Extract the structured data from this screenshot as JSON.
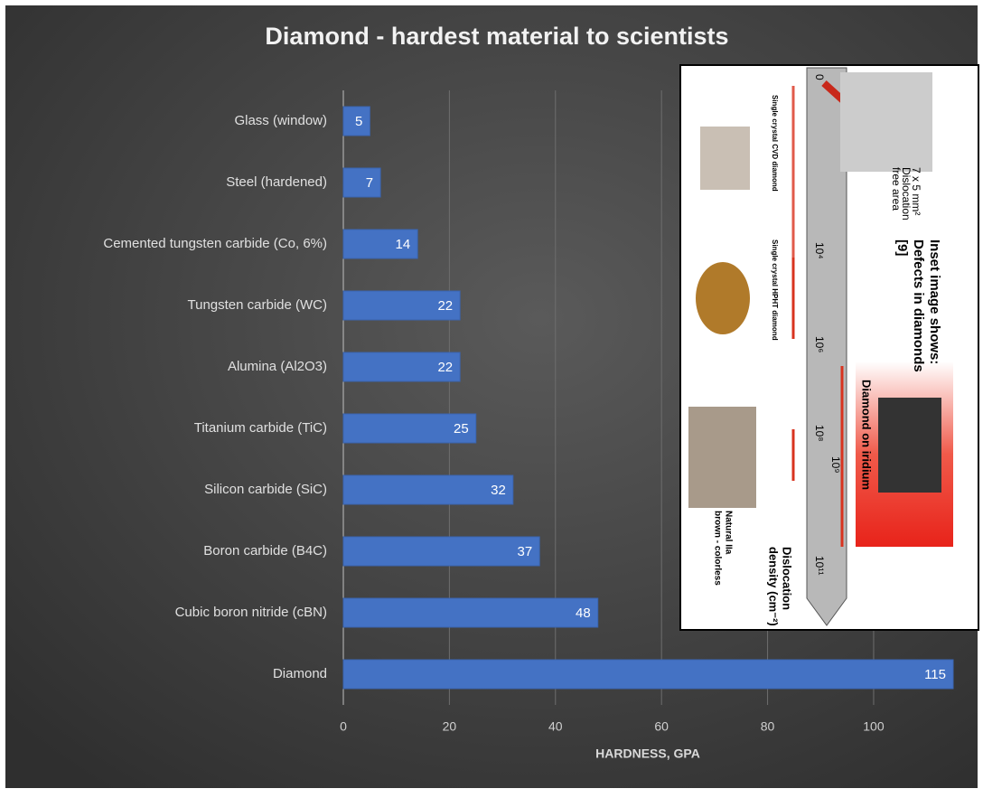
{
  "chart_data": {
    "type": "barh",
    "title": "Diamond - hardest material to scientists",
    "x_label": "HARDNESS, GPA",
    "categories": [
      "Glass (window)",
      "Steel (hardened)",
      "Cemented tungsten carbide (Co, 6%)",
      "Tungsten carbide (WC)",
      "Alumina (Al2O3)",
      "Titanium carbide (TiC)",
      "Silicon carbide (SiC)",
      "Boron carbide (B4C)",
      "Cubic boron nitride (cBN)",
      "Diamond"
    ],
    "values": [
      5,
      7,
      14,
      22,
      22,
      25,
      32,
      37,
      48,
      115
    ],
    "color": "#4472c4",
    "xlim": [
      0,
      115
    ],
    "xticks": [
      0,
      20,
      40,
      60,
      80,
      100
    ],
    "grid": true,
    "inset": {
      "caption": [
        "Inset image shows:",
        "Defects in diamonds",
        "[9]"
      ],
      "sample_label": "Diamond on iridium",
      "axis_title": [
        "Dislocation",
        "density (cm⁻²)"
      ],
      "axis_labels": [
        "0",
        "10⁴",
        "10⁶",
        "10⁸",
        "10⁹",
        "10¹¹"
      ],
      "cvd": "Single crystal CVD diamond",
      "hpht": "Single crystal HPHT diamond",
      "natural": [
        "Natural IIa",
        "brown - colorless"
      ],
      "free_area": [
        "7 x 5 mm²",
        "Dislocation",
        "free area"
      ]
    }
  }
}
